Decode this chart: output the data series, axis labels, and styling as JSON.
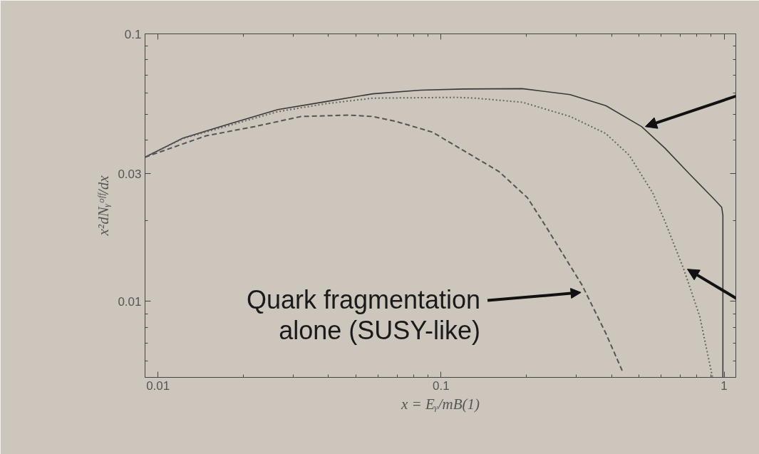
{
  "chart_data": {
    "type": "line",
    "xlabel": "x = Eᵧ/mB(1)",
    "ylabel": "x²dNᵧᵒᶠᶠ/dx",
    "log": "xy",
    "grid": false,
    "xlim": [
      0.009,
      1.1
    ],
    "ylim": [
      0.0052,
      0.1
    ],
    "xticks": [
      0.01,
      0.1,
      1,
      {
        "value": 0.02,
        "label": null
      },
      {
        "value": 0.03,
        "label": null
      },
      {
        "value": 0.04,
        "label": null
      },
      {
        "value": 0.05,
        "label": null
      },
      {
        "value": 0.06,
        "label": null
      },
      {
        "value": 0.07,
        "label": null
      },
      {
        "value": 0.08,
        "label": null
      },
      {
        "value": 0.09,
        "label": null
      },
      {
        "value": 0.2,
        "label": null
      },
      {
        "value": 0.3,
        "label": null
      },
      {
        "value": 0.4,
        "label": null
      },
      {
        "value": 0.5,
        "label": null
      },
      {
        "value": 0.6,
        "label": null
      },
      {
        "value": 0.7,
        "label": null
      },
      {
        "value": 0.8,
        "label": null
      },
      {
        "value": 0.9,
        "label": null
      }
    ],
    "yticks": [
      0.01,
      0.03,
      0.1,
      {
        "value": 0.006,
        "label": null
      },
      {
        "value": 0.007,
        "label": null
      },
      {
        "value": 0.008,
        "label": null
      },
      {
        "value": 0.009,
        "label": null
      },
      {
        "value": 0.02,
        "label": null
      },
      {
        "value": 0.04,
        "label": null
      },
      {
        "value": 0.05,
        "label": null
      },
      {
        "value": 0.06,
        "label": null
      },
      {
        "value": 0.07,
        "label": null
      },
      {
        "value": 0.08,
        "label": null
      },
      {
        "value": 0.09,
        "label": null
      }
    ],
    "series": [
      {
        "color": "#3a3a3a",
        "line_style": "solid",
        "x": [
          0.009,
          0.01226,
          0.0179,
          0.0265,
          0.0391,
          0.0574,
          0.0846,
          0.12,
          0.1936,
          0.2856,
          0.382,
          0.511,
          0.618,
          0.753,
          0.912,
          0.98,
          0.99,
          0.99
        ],
        "values": [
          0.0346,
          0.0408,
          0.0461,
          0.0521,
          0.0558,
          0.0597,
          0.0616,
          0.0622,
          0.0624,
          0.0593,
          0.0539,
          0.045,
          0.0374,
          0.03,
          0.0244,
          0.0225,
          0.021,
          0.0052
        ]
      },
      {
        "color": "#666666",
        "line_style": "dotted",
        "x": [
          0.009,
          0.01226,
          0.0179,
          0.0265,
          0.0391,
          0.0574,
          0.113,
          0.132,
          0.194,
          0.286,
          0.382,
          0.462,
          0.56,
          0.618,
          0.72,
          0.82,
          0.91
        ],
        "values": [
          0.0346,
          0.0406,
          0.0455,
          0.0512,
          0.0548,
          0.0575,
          0.0579,
          0.0575,
          0.0555,
          0.0491,
          0.0424,
          0.0352,
          0.0254,
          0.0199,
          0.0132,
          0.0088,
          0.0052
        ]
      },
      {
        "color": "#555555",
        "line_style": "dashed",
        "x": [
          0.009,
          0.0148,
          0.0219,
          0.032,
          0.0473,
          0.0574,
          0.0697,
          0.0933,
          0.1197,
          0.16,
          0.202,
          0.235,
          0.315,
          0.382,
          0.44
        ],
        "values": [
          0.0346,
          0.0416,
          0.045,
          0.0491,
          0.0497,
          0.0491,
          0.047,
          0.0429,
          0.0367,
          0.0306,
          0.0244,
          0.019,
          0.0115,
          0.0076,
          0.0054
        ]
      }
    ],
    "annotations": [
      {
        "text": "Quark fragmentation\nalone (SUSY-like)",
        "x": 0.312,
        "y": 0.0108
      }
    ]
  }
}
